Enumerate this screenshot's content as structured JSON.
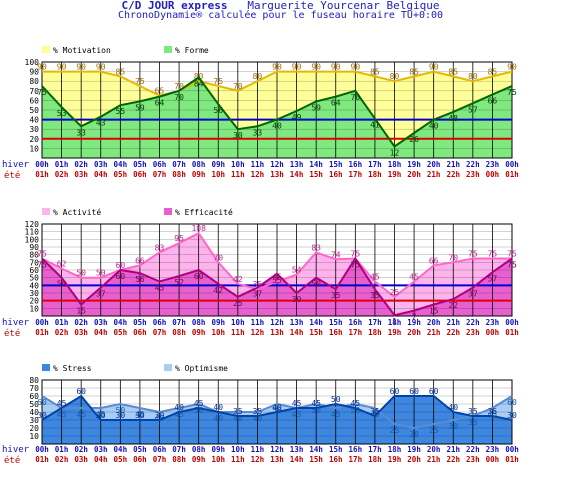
{
  "header": {
    "title": "C/D JOUR express",
    "person": "Marguerite Yourcenar Belgique",
    "subtitle": "ChronoDynamie® calculée pour le fuseau horaire TU+0:00"
  },
  "row_labels": {
    "winter": "hiver",
    "summer": "été"
  },
  "colors": {
    "motivation_fill": "#ffff99",
    "motivation_line": "#e8b800",
    "forme_fill": "#7fe87f",
    "forme_line": "#006600",
    "activite_fill": "#ffb3ec",
    "activite_line": "#ff66cc",
    "efficacite_fill": "#e85fd0",
    "efficacite_line": "#b00080",
    "stress_fill": "#3d87e0",
    "stress_line": "#0044aa",
    "optimisme_fill": "#a8cdf5",
    "optimisme_line": "#5a8ad0",
    "ref_blue": "#0000cc",
    "ref_red": "#dd0000",
    "grid": "#000000",
    "tick_winter": "#1010c0",
    "tick_summer": "#c00000"
  },
  "chart_data": [
    {
      "type": "area",
      "x_winter": [
        "00h",
        "01h",
        "02h",
        "03h",
        "04h",
        "05h",
        "06h",
        "07h",
        "08h",
        "09h",
        "10h",
        "11h",
        "12h",
        "13h",
        "14h",
        "15h",
        "16h",
        "17h",
        "18h",
        "19h",
        "20h",
        "21h",
        "22h",
        "23h",
        "00h"
      ],
      "x_summer": [
        "01h",
        "02h",
        "03h",
        "04h",
        "05h",
        "06h",
        "07h",
        "08h",
        "09h",
        "10h",
        "11h",
        "12h",
        "13h",
        "14h",
        "15h",
        "16h",
        "17h",
        "18h",
        "19h",
        "20h",
        "21h",
        "22h",
        "23h",
        "00h",
        "01h"
      ],
      "ylim": [
        0,
        100
      ],
      "yticks": [
        10,
        20,
        30,
        40,
        50,
        60,
        70,
        80,
        90,
        100
      ],
      "reference_lines": [
        {
          "value": 40,
          "color": "blue"
        },
        {
          "value": 20,
          "color": "red"
        }
      ],
      "series": [
        {
          "name": "% Motivation",
          "values": [
            90,
            90,
            90,
            90,
            85,
            75,
            65,
            70,
            80,
            75,
            70,
            80,
            90,
            90,
            90,
            90,
            90,
            85,
            80,
            85,
            90,
            85,
            80,
            85,
            90
          ]
        },
        {
          "name": "% Forme",
          "values": [
            75,
            53,
            33,
            43,
            55,
            59,
            64,
            70,
            84,
            56,
            30,
            33,
            40,
            49,
            59,
            64,
            70,
            41,
            12,
            26,
            40,
            48,
            57,
            66,
            75
          ]
        }
      ]
    },
    {
      "type": "area",
      "x_winter": [
        "00h",
        "01h",
        "02h",
        "03h",
        "04h",
        "05h",
        "06h",
        "07h",
        "08h",
        "09h",
        "10h",
        "11h",
        "12h",
        "13h",
        "14h",
        "15h",
        "16h",
        "17h",
        "18h",
        "19h",
        "20h",
        "21h",
        "22h",
        "23h",
        "00h"
      ],
      "x_summer": [
        "01h",
        "02h",
        "03h",
        "04h",
        "05h",
        "06h",
        "07h",
        "08h",
        "09h",
        "10h",
        "11h",
        "12h",
        "13h",
        "14h",
        "15h",
        "16h",
        "17h",
        "18h",
        "19h",
        "20h",
        "21h",
        "22h",
        "23h",
        "00h",
        "01h"
      ],
      "ylim": [
        0,
        120
      ],
      "yticks": [
        10,
        20,
        30,
        40,
        50,
        60,
        70,
        80,
        90,
        100,
        110,
        120
      ],
      "reference_lines": [
        {
          "value": 40,
          "color": "blue"
        },
        {
          "value": 20,
          "color": "red"
        }
      ],
      "series": [
        {
          "name": "% Activité",
          "values": [
            75,
            62,
            50,
            50,
            60,
            66,
            83,
            95,
            108,
            70,
            42,
            35,
            45,
            54,
            83,
            74,
            75,
            45,
            25,
            45,
            66,
            70,
            75,
            75,
            75
          ]
        },
        {
          "name": "% Efficacité",
          "values": [
            75,
            50,
            15,
            37,
            60,
            56,
            45,
            52,
            60,
            42,
            25,
            37,
            55,
            30,
            50,
            35,
            75,
            35,
            1,
            7,
            15,
            22,
            37,
            57,
            75
          ]
        }
      ]
    },
    {
      "type": "area",
      "x_winter": [
        "00h",
        "01h",
        "02h",
        "03h",
        "04h",
        "05h",
        "06h",
        "07h",
        "08h",
        "09h",
        "10h",
        "11h",
        "12h",
        "13h",
        "14h",
        "15h",
        "16h",
        "17h",
        "18h",
        "19h",
        "20h",
        "21h",
        "22h",
        "23h",
        "00h"
      ],
      "x_summer": [
        "01h",
        "02h",
        "03h",
        "04h",
        "05h",
        "06h",
        "07h",
        "08h",
        "09h",
        "10h",
        "11h",
        "12h",
        "13h",
        "14h",
        "15h",
        "16h",
        "17h",
        "18h",
        "19h",
        "20h",
        "21h",
        "22h",
        "23h",
        "00h",
        "01h"
      ],
      "ylim": [
        0,
        80
      ],
      "yticks": [
        10,
        20,
        30,
        40,
        50,
        60,
        70,
        80
      ],
      "series": [
        {
          "name": "% Stress",
          "values": [
            30,
            45,
            60,
            30,
            30,
            30,
            30,
            40,
            45,
            40,
            35,
            35,
            40,
            45,
            45,
            50,
            45,
            35,
            60,
            60,
            60,
            40,
            35,
            35,
            30
          ]
        },
        {
          "name": "% Optimisme",
          "values": [
            60,
            45,
            45,
            45,
            50,
            45,
            40,
            45,
            50,
            40,
            40,
            40,
            50,
            45,
            50,
            45,
            50,
            45,
            25,
            20,
            25,
            30,
            35,
            45,
            60
          ]
        }
      ]
    }
  ]
}
